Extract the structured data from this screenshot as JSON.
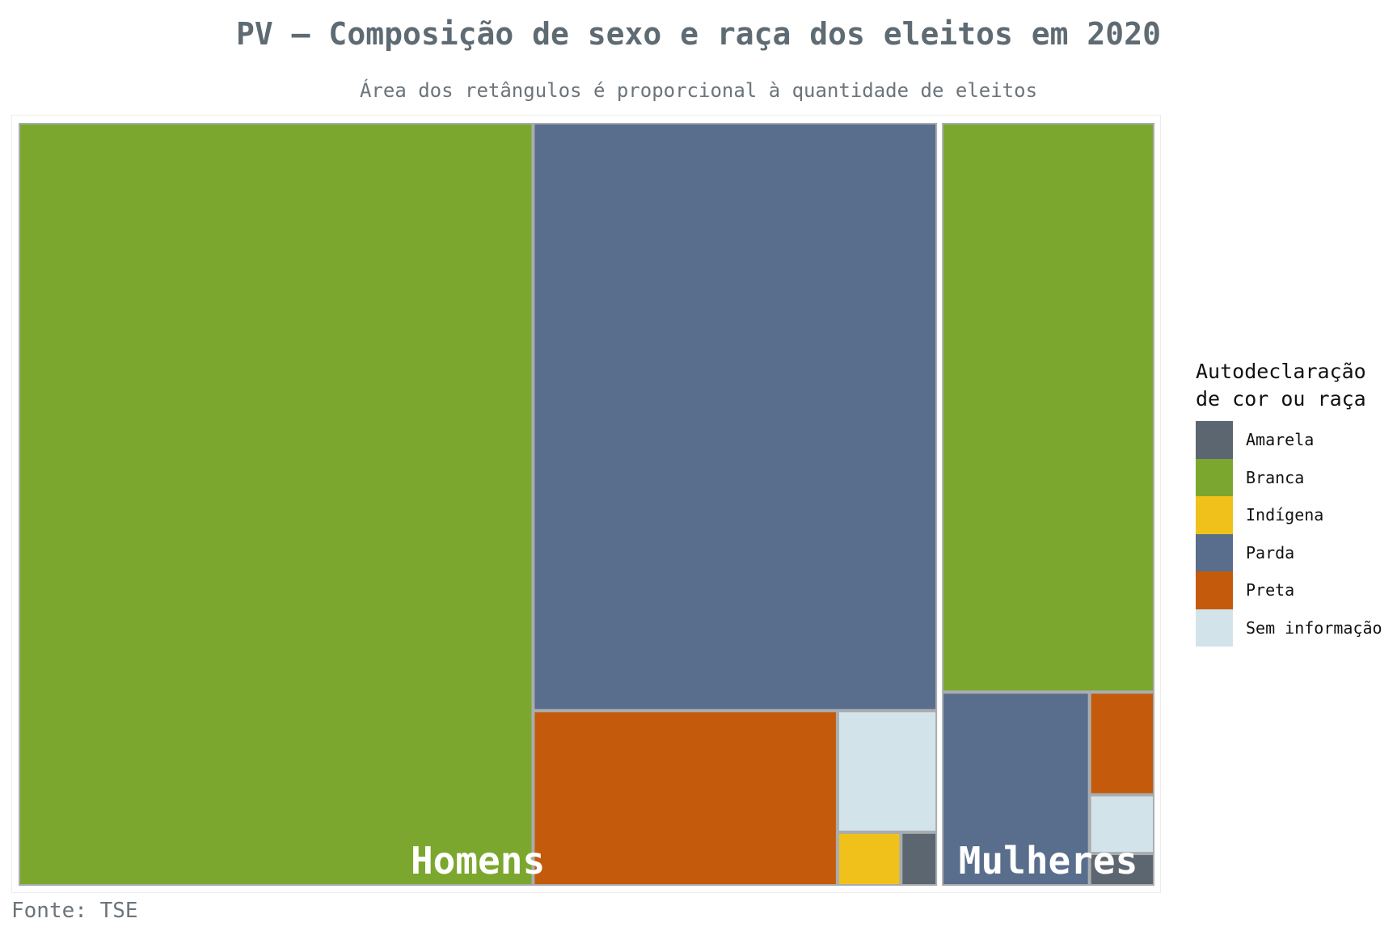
{
  "title": "PV – Composição de sexo e raça dos eleitos em 2020",
  "subtitle": "Área dos retângulos é proporcional à quantidade de eleitos",
  "caption": "Fonte: TSE",
  "legend": {
    "title_line1": "Autodeclaração",
    "title_line2": "de cor ou raça",
    "items": [
      {
        "label": "Amarela",
        "color": "#5c6670"
      },
      {
        "label": "Branca",
        "color": "#7ca72e"
      },
      {
        "label": "Indígena",
        "color": "#f0c11a"
      },
      {
        "label": "Parda",
        "color": "#596d8c"
      },
      {
        "label": "Preta",
        "color": "#c45b0c"
      },
      {
        "label": "Sem informação",
        "color": "#d3e3ea"
      }
    ]
  },
  "chart_data": {
    "type": "treemap",
    "title": "PV – Composição de sexo e raça dos eleitos em 2020",
    "subtitle": "Área dos retângulos é proporcional à quantidade de eleitos",
    "groups": [
      {
        "name": "Homens",
        "values": [
          {
            "category": "Branca",
            "value": 4050
          },
          {
            "category": "Parda",
            "value": 2450
          },
          {
            "category": "Preta",
            "value": 550
          },
          {
            "category": "Sem informação",
            "value": 125
          },
          {
            "category": "Indígena",
            "value": 35
          },
          {
            "category": "Amarela",
            "value": 20
          }
        ]
      },
      {
        "name": "Mulheres",
        "values": [
          {
            "category": "Branca",
            "value": 1270
          },
          {
            "category": "Parda",
            "value": 300
          },
          {
            "category": "Preta",
            "value": 70
          },
          {
            "category": "Sem informação",
            "value": 40
          },
          {
            "category": "Amarela",
            "value": 22
          }
        ]
      }
    ]
  }
}
